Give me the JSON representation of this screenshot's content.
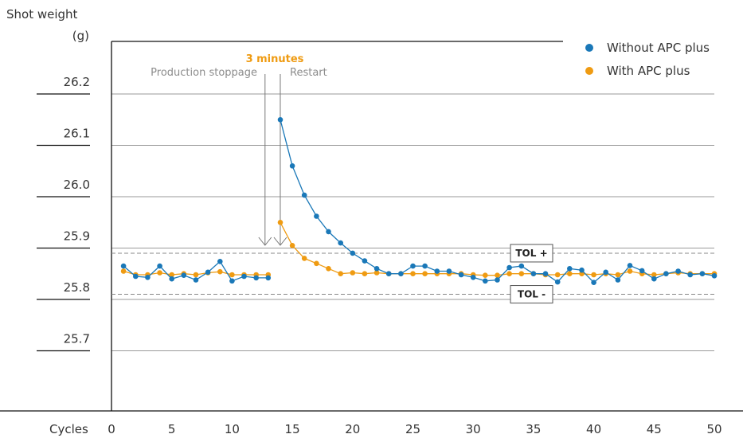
{
  "chart_data": {
    "type": "line",
    "ylabel_line1": "Shot weight",
    "ylabel_line2": "(g)",
    "xlabel": "Cycles",
    "xlim": [
      0,
      50
    ],
    "ylim": [
      25.6,
      26.3
    ],
    "xticks": [
      "0",
      "5",
      "10",
      "15",
      "20",
      "25",
      "30",
      "35",
      "40",
      "45",
      "50"
    ],
    "yticks": [
      "25.7",
      "25.8",
      "25.9",
      "26.0",
      "26.1",
      "26.2"
    ],
    "grid": true,
    "legend_position": "top-right",
    "tolerance": {
      "upper": {
        "label": "TOL +",
        "value": 25.89
      },
      "lower": {
        "label": "TOL -",
        "value": 25.81
      }
    },
    "annotations": {
      "stoppage": {
        "label": "Production stoppage",
        "x": 13
      },
      "restart": {
        "label": "Restart",
        "x": 14
      },
      "duration": {
        "label": "3 minutes"
      }
    },
    "series": [
      {
        "name": "Without APC plus",
        "color": "#1a78b8",
        "x": [
          1,
          2,
          3,
          4,
          5,
          6,
          7,
          8,
          9,
          10,
          11,
          12,
          13,
          14,
          15,
          16,
          17,
          18,
          19,
          20,
          21,
          22,
          23,
          24,
          25,
          26,
          27,
          28,
          29,
          30,
          31,
          32,
          33,
          34,
          35,
          36,
          37,
          38,
          39,
          40,
          41,
          42,
          43,
          44,
          45,
          46,
          47,
          48,
          49,
          50
        ],
        "values": [
          25.865,
          25.845,
          25.843,
          25.865,
          25.84,
          25.847,
          25.838,
          25.853,
          25.874,
          25.836,
          25.845,
          25.842,
          25.842,
          26.15,
          26.06,
          26.003,
          25.962,
          25.932,
          25.91,
          25.89,
          25.875,
          25.86,
          25.85,
          25.85,
          25.865,
          25.865,
          25.855,
          25.855,
          25.848,
          25.843,
          25.836,
          25.838,
          25.862,
          25.865,
          25.85,
          25.85,
          25.834,
          25.86,
          25.857,
          25.833,
          25.853,
          25.838,
          25.866,
          25.856,
          25.84,
          25.85,
          25.855,
          25.848,
          25.85,
          25.846
        ]
      },
      {
        "name": "With APC plus",
        "color": "#ef9b12",
        "x": [
          1,
          2,
          3,
          4,
          5,
          6,
          7,
          8,
          9,
          10,
          11,
          12,
          13,
          14,
          15,
          16,
          17,
          18,
          19,
          20,
          21,
          22,
          23,
          24,
          25,
          26,
          27,
          28,
          29,
          30,
          31,
          32,
          33,
          34,
          35,
          36,
          37,
          38,
          39,
          40,
          41,
          42,
          43,
          44,
          45,
          46,
          47,
          48,
          49,
          50
        ],
        "values": [
          25.855,
          25.848,
          25.848,
          25.852,
          25.848,
          25.85,
          25.848,
          25.852,
          25.854,
          25.848,
          25.848,
          25.848,
          25.848,
          25.95,
          25.905,
          25.88,
          25.87,
          25.86,
          25.85,
          25.852,
          25.85,
          25.852,
          25.85,
          25.85,
          25.85,
          25.85,
          25.85,
          25.85,
          25.85,
          25.848,
          25.847,
          25.847,
          25.85,
          25.85,
          25.85,
          25.848,
          25.848,
          25.85,
          25.85,
          25.848,
          25.85,
          25.848,
          25.855,
          25.85,
          25.848,
          25.85,
          25.852,
          25.85,
          25.85,
          25.85
        ]
      }
    ]
  }
}
